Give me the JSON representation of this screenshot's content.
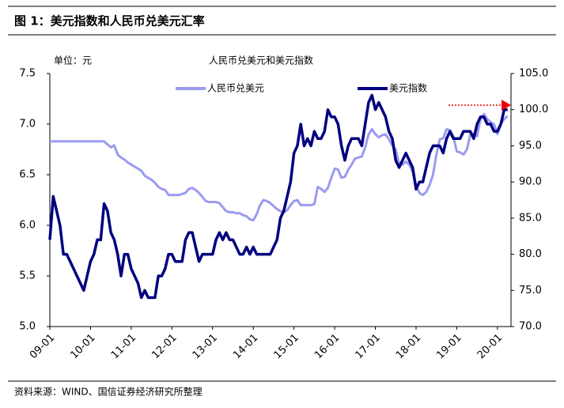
{
  "header": {
    "title": "图 1：美元指数和人民币兑美元汇率"
  },
  "chart_data": {
    "type": "line",
    "title": "人民币兑美元和美元指数",
    "unit_label": "单位：元",
    "xlim": [
      "2009-01",
      "2020-05"
    ],
    "xticks": [
      {
        "value": "2009-01",
        "label": "09-01"
      },
      {
        "value": "2010-01",
        "label": "10-01"
      },
      {
        "value": "2011-01",
        "label": "11-01"
      },
      {
        "value": "2012-01",
        "label": "12-01"
      },
      {
        "value": "2013-01",
        "label": "13-01"
      },
      {
        "value": "2014-01",
        "label": "14-01"
      },
      {
        "value": "2015-01",
        "label": "15-01"
      },
      {
        "value": "2016-01",
        "label": "16-01"
      },
      {
        "value": "2017-01",
        "label": "17-01"
      },
      {
        "value": "2018-01",
        "label": "18-01"
      },
      {
        "value": "2019-01",
        "label": "19-01"
      },
      {
        "value": "2020-01",
        "label": "20-01"
      }
    ],
    "ylim": [
      5.0,
      7.5
    ],
    "yticks": [
      {
        "value": 5.0,
        "label": "5.0"
      },
      5.5,
      {
        "value": 6.0,
        "label": "6.0"
      },
      6.5,
      {
        "value": 7.0,
        "label": "7.0"
      },
      7.5
    ],
    "y2lim": [
      70,
      105
    ],
    "y2ticks": [
      {
        "value": 70,
        "label": "70.0"
      },
      {
        "value": 75,
        "label": "75.0"
      },
      {
        "value": 80,
        "label": "80.0"
      },
      {
        "value": 85,
        "label": "85.0"
      },
      {
        "value": 90,
        "label": "90.0"
      },
      {
        "value": 95,
        "label": "95.0"
      },
      {
        "value": 100,
        "label": "100.0"
      },
      {
        "value": 105,
        "label": "105.0"
      }
    ],
    "grid": false,
    "x": [
      "2009-01",
      "2009-02",
      "2009-03",
      "2009-04",
      "2009-05",
      "2009-06",
      "2009-07",
      "2009-08",
      "2009-09",
      "2009-10",
      "2009-11",
      "2009-12",
      "2010-01",
      "2010-02",
      "2010-03",
      "2010-04",
      "2010-05",
      "2010-06",
      "2010-07",
      "2010-08",
      "2010-09",
      "2010-10",
      "2010-11",
      "2010-12",
      "2011-01",
      "2011-02",
      "2011-03",
      "2011-04",
      "2011-05",
      "2011-06",
      "2011-07",
      "2011-08",
      "2011-09",
      "2011-10",
      "2011-11",
      "2011-12",
      "2012-01",
      "2012-02",
      "2012-03",
      "2012-04",
      "2012-05",
      "2012-06",
      "2012-07",
      "2012-08",
      "2012-09",
      "2012-10",
      "2012-11",
      "2012-12",
      "2013-01",
      "2013-02",
      "2013-03",
      "2013-04",
      "2013-05",
      "2013-06",
      "2013-07",
      "2013-08",
      "2013-09",
      "2013-10",
      "2013-11",
      "2013-12",
      "2014-01",
      "2014-02",
      "2014-03",
      "2014-04",
      "2014-05",
      "2014-06",
      "2014-07",
      "2014-08",
      "2014-09",
      "2014-10",
      "2014-11",
      "2014-12",
      "2015-01",
      "2015-02",
      "2015-03",
      "2015-04",
      "2015-05",
      "2015-06",
      "2015-07",
      "2015-08",
      "2015-09",
      "2015-10",
      "2015-11",
      "2015-12",
      "2016-01",
      "2016-02",
      "2016-03",
      "2016-04",
      "2016-05",
      "2016-06",
      "2016-07",
      "2016-08",
      "2016-09",
      "2016-10",
      "2016-11",
      "2016-12",
      "2017-01",
      "2017-02",
      "2017-03",
      "2017-04",
      "2017-05",
      "2017-06",
      "2017-07",
      "2017-08",
      "2017-09",
      "2017-10",
      "2017-11",
      "2017-12",
      "2018-01",
      "2018-02",
      "2018-03",
      "2018-04",
      "2018-05",
      "2018-06",
      "2018-07",
      "2018-08",
      "2018-09",
      "2018-10",
      "2018-11",
      "2018-12",
      "2019-01",
      "2019-02",
      "2019-03",
      "2019-04",
      "2019-05",
      "2019-06",
      "2019-07",
      "2019-08",
      "2019-09",
      "2019-10",
      "2019-11",
      "2019-12",
      "2020-01",
      "2020-02",
      "2020-03",
      "2020-04"
    ],
    "series": [
      {
        "name": "人民币兑美元",
        "color": "#9b9bef",
        "values": [
          6.83,
          6.83,
          6.83,
          6.83,
          6.83,
          6.83,
          6.83,
          6.83,
          6.83,
          6.83,
          6.83,
          6.83,
          6.83,
          6.83,
          6.83,
          6.83,
          6.83,
          6.8,
          6.77,
          6.79,
          6.7,
          6.67,
          6.65,
          6.62,
          6.6,
          6.58,
          6.56,
          6.54,
          6.49,
          6.47,
          6.45,
          6.42,
          6.38,
          6.36,
          6.35,
          6.3,
          6.3,
          6.3,
          6.3,
          6.31,
          6.32,
          6.36,
          6.37,
          6.35,
          6.32,
          6.28,
          6.24,
          6.23,
          6.23,
          6.23,
          6.22,
          6.18,
          6.14,
          6.13,
          6.13,
          6.12,
          6.12,
          6.1,
          6.09,
          6.06,
          6.05,
          6.11,
          6.2,
          6.25,
          6.24,
          6.22,
          6.19,
          6.16,
          6.14,
          6.13,
          6.15,
          6.2,
          6.24,
          6.25,
          6.2,
          6.2,
          6.2,
          6.2,
          6.21,
          6.38,
          6.36,
          6.33,
          6.37,
          6.47,
          6.56,
          6.55,
          6.47,
          6.48,
          6.55,
          6.6,
          6.66,
          6.67,
          6.68,
          6.77,
          6.9,
          6.95,
          6.9,
          6.87,
          6.89,
          6.9,
          6.85,
          6.79,
          6.75,
          6.61,
          6.6,
          6.63,
          6.6,
          6.53,
          6.4,
          6.32,
          6.3,
          6.33,
          6.4,
          6.5,
          6.7,
          6.85,
          6.86,
          6.95,
          6.94,
          6.88,
          6.73,
          6.72,
          6.7,
          6.75,
          6.9,
          6.9,
          6.88,
          7.05,
          7.1,
          7.05,
          7.02,
          7.0,
          6.9,
          7.0,
          7.05,
          7.08
        ]
      },
      {
        "name": "美元指数",
        "color": "#000080",
        "axis": "y2",
        "values": [
          82,
          88,
          86,
          84,
          80,
          80,
          79,
          78,
          77,
          76,
          75,
          77,
          79,
          80,
          82,
          82,
          87,
          86,
          83,
          82,
          80,
          77,
          80,
          80,
          78,
          77,
          76,
          74,
          75,
          74,
          74,
          74,
          77,
          77,
          78,
          80,
          80,
          79,
          79,
          79,
          82,
          83,
          83,
          81,
          79,
          80,
          80,
          80,
          80,
          82,
          83,
          82,
          83,
          82,
          82,
          81,
          80,
          80,
          81,
          80,
          81,
          80,
          80,
          80,
          80,
          80,
          81,
          82,
          85,
          86,
          88,
          90,
          94,
          95,
          98,
          95,
          96,
          95,
          97,
          96,
          96,
          97,
          100,
          99,
          99,
          98,
          95,
          93,
          95,
          96,
          96,
          96,
          95,
          98,
          101,
          102,
          100,
          101,
          100,
          99,
          97,
          96,
          93,
          92,
          93,
          94,
          93,
          92,
          89,
          90,
          90,
          92,
          94,
          95,
          95,
          95,
          94,
          96,
          97,
          96,
          96,
          96,
          97,
          97,
          97,
          96,
          98,
          99,
          99,
          98,
          98,
          97,
          97,
          98,
          100,
          100
        ]
      }
    ]
  },
  "footer": {
    "source": "资料来源：WIND、国信证券经济研究所整理"
  }
}
